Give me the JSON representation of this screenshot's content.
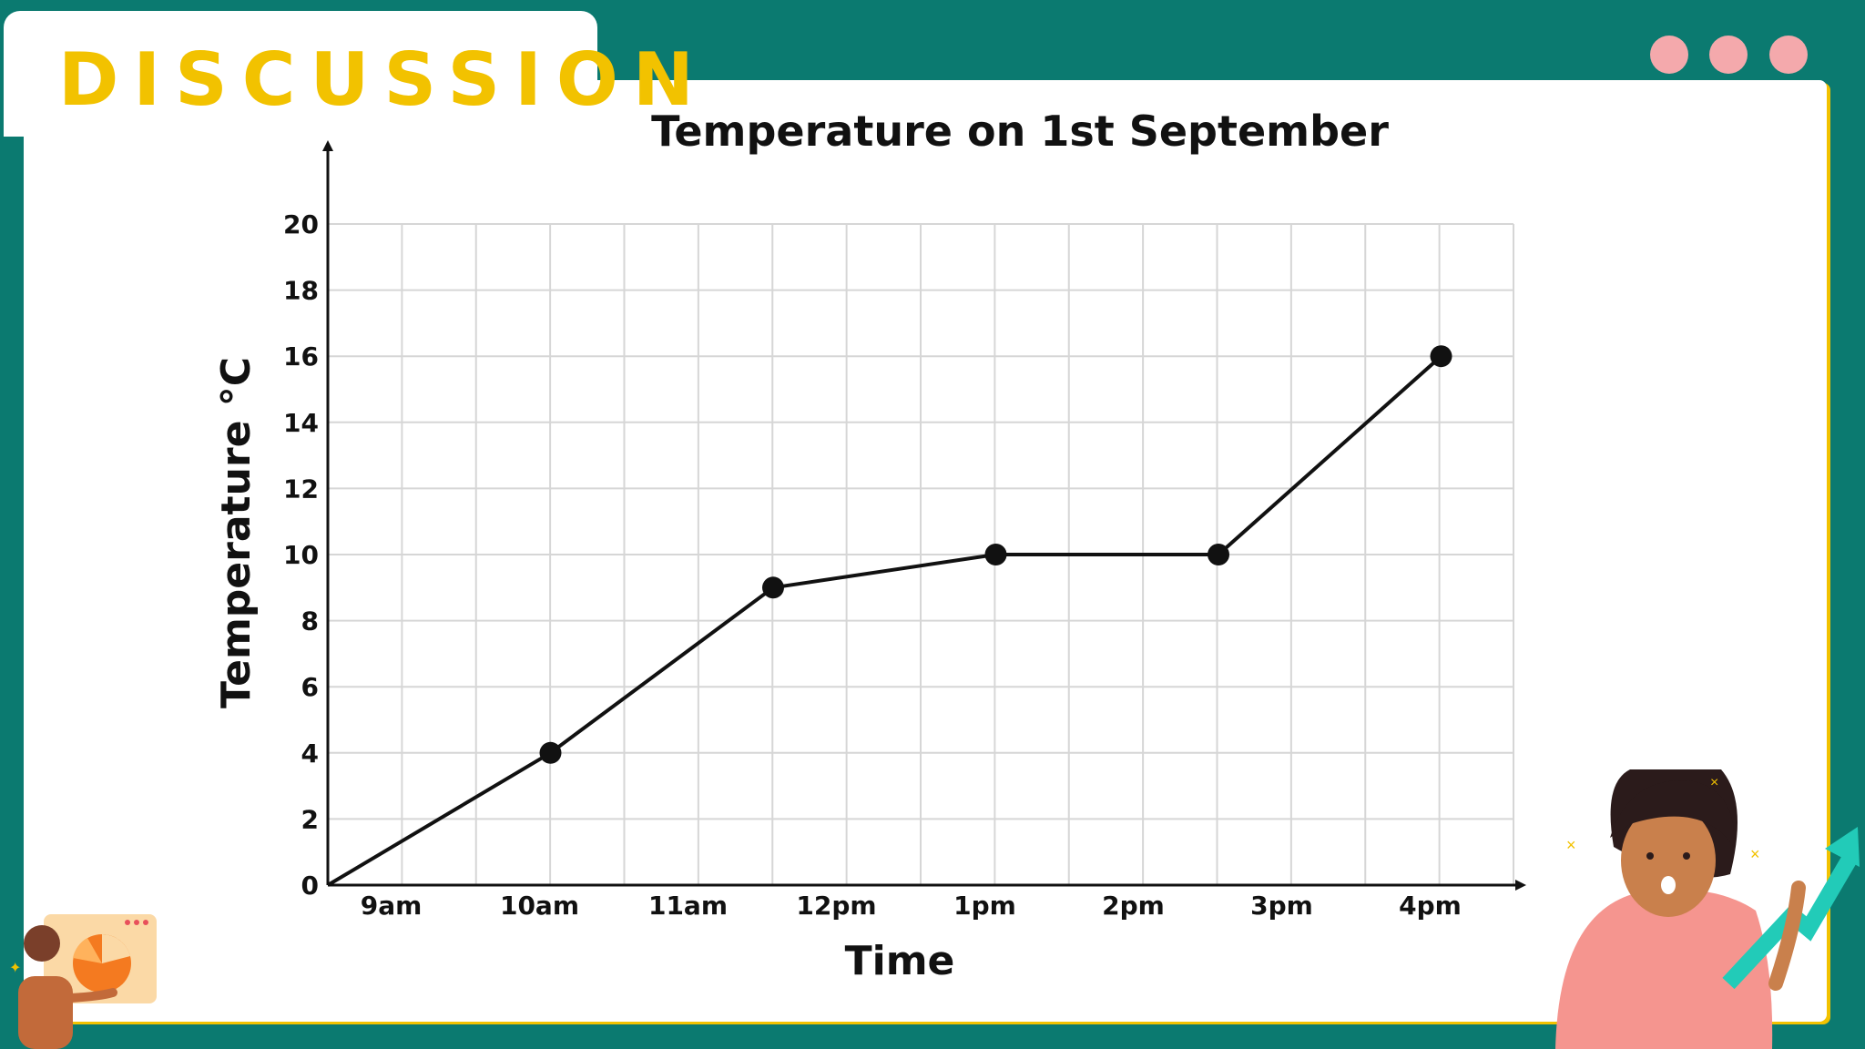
{
  "header": {
    "title": "DISCUSSION"
  },
  "window_controls": [
    "dot-1",
    "dot-2",
    "dot-3"
  ],
  "colors": {
    "background": "#0b7a70",
    "board": "#ffffff",
    "title": "#f2c200",
    "dots": "#f4a9ac",
    "line": "#111111",
    "grid": "#d6d6d6"
  },
  "chart_data": {
    "type": "line",
    "title": "Temperature on 1st September",
    "xlabel": "Time",
    "ylabel": "Temperature °C",
    "categories": [
      "9am",
      "10am",
      "11am",
      "12pm",
      "1pm",
      "2pm",
      "3pm",
      "4pm"
    ],
    "ylim": [
      0,
      20
    ],
    "ytick_step": 2,
    "grid": true,
    "series": [
      {
        "values": [
          {
            "x": "8:30am",
            "y": 0
          },
          {
            "x": "10am",
            "y": 4
          },
          {
            "x": "11:30am",
            "y": 9
          },
          {
            "x": "1pm",
            "y": 10
          },
          {
            "x": "2:30pm",
            "y": 10
          },
          {
            "x": "4pm",
            "y": 16
          }
        ]
      }
    ]
  },
  "illustrations": [
    "presenter-left-icon",
    "pie-chart-icon",
    "girl-with-growth-arrow-icon"
  ]
}
